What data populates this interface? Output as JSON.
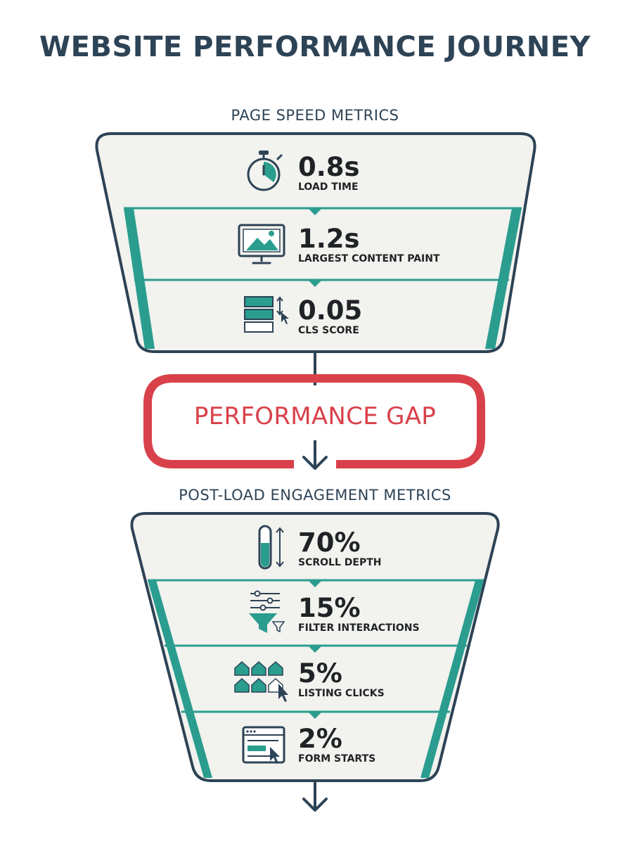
{
  "title": "WEBSITE PERFORMANCE JOURNEY",
  "page_speed": {
    "heading": "PAGE SPEED METRICS",
    "metrics": [
      {
        "value": "0.8s",
        "label": "LOAD TIME",
        "icon": "stopwatch-icon"
      },
      {
        "value": "1.2s",
        "label": "LARGEST CONTENT PAINT",
        "icon": "monitor-image-icon"
      },
      {
        "value": "0.05",
        "label": "CLS SCORE",
        "icon": "layout-shift-icon"
      }
    ]
  },
  "gap": {
    "label": "PERFORMANCE GAP"
  },
  "engagement": {
    "heading": "POST-LOAD ENGAGEMENT METRICS",
    "metrics": [
      {
        "value": "70%",
        "label": "SCROLL DEPTH",
        "icon": "scroll-gauge-icon"
      },
      {
        "value": "15%",
        "label": "FILTER INTERACTIONS",
        "icon": "filter-funnel-icon"
      },
      {
        "value": "5%",
        "label": "LISTING CLICKS",
        "icon": "house-listings-icon"
      },
      {
        "value": "2%",
        "label": "FORM STARTS",
        "icon": "form-window-icon"
      }
    ]
  },
  "colors": {
    "teal": "#2a9d8f",
    "navy": "#2d4356",
    "red": "#d9414a",
    "panel": "#f2f2ee"
  }
}
